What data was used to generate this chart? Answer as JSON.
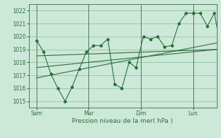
{
  "xlabel": "Pression niveau de la mer( hPa )",
  "bg_color": "#cce8d8",
  "grid_color": "#88bb99",
  "line_color": "#2a6e3a",
  "vline_color": "#507858",
  "ylim": [
    1014.5,
    1022.5
  ],
  "yticks": [
    1015,
    1016,
    1017,
    1018,
    1019,
    1020,
    1021,
    1022
  ],
  "day_labels": [
    "Sam",
    "Mar",
    "Dim",
    "Lun"
  ],
  "day_positions": [
    0.0,
    0.333,
    0.667,
    1.0
  ],
  "xlim": [
    -0.05,
    1.15
  ],
  "main_x": [
    0.0,
    0.045,
    0.091,
    0.136,
    0.182,
    0.227,
    0.273,
    0.318,
    0.364,
    0.409,
    0.455,
    0.5,
    0.545,
    0.591,
    0.636,
    0.682,
    0.727,
    0.773,
    0.818,
    0.864,
    0.909,
    0.955,
    1.0
  ],
  "main_y": [
    1019.7,
    1018.8,
    1017.1,
    1016.0,
    1015.0,
    1016.1,
    1017.5,
    1018.8,
    1019.3,
    1019.3,
    1019.8,
    1016.3,
    1016.0,
    1018.0,
    1017.6,
    1020.0,
    1019.8,
    1020.0,
    1019.2,
    1019.3,
    1021.0,
    1021.8,
    1021.8
  ],
  "trend1_x": [
    0.0,
    1.15
  ],
  "trend1_y": [
    1017.6,
    1019.0
  ],
  "trend2_x": [
    0.0,
    1.15
  ],
  "trend2_y": [
    1018.5,
    1019.0
  ],
  "trend3_x": [
    0.0,
    1.15
  ],
  "trend3_y": [
    1016.8,
    1019.5
  ],
  "extra_x": [
    1.0,
    1.045,
    1.091,
    1.136,
    1.18
  ],
  "extra_y": [
    1021.8,
    1021.8,
    1020.8,
    1021.8,
    1018.9
  ]
}
